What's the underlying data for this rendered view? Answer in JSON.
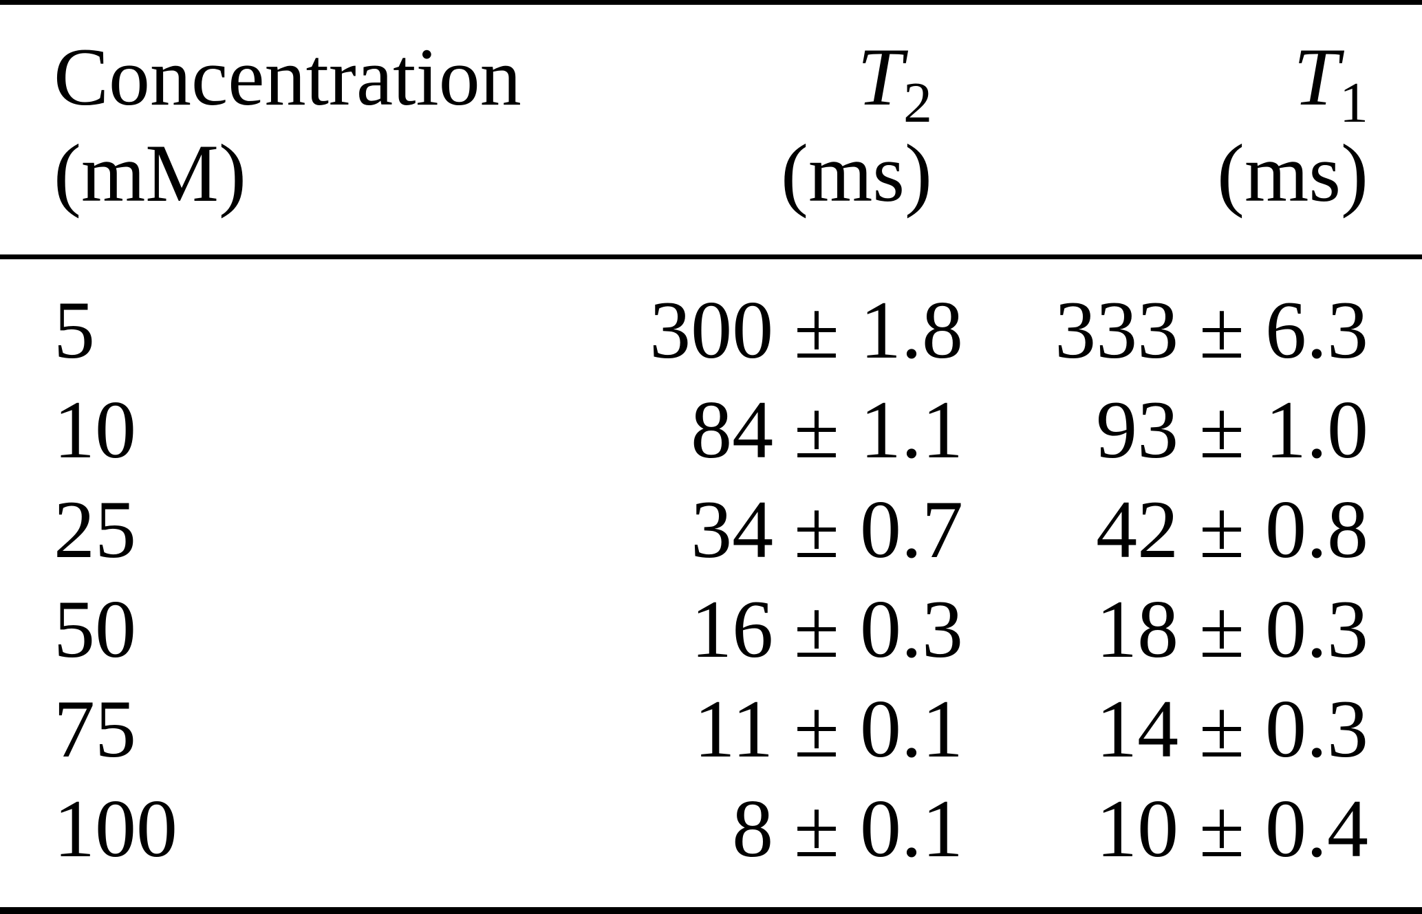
{
  "colors": {
    "text": "#000000",
    "background": "#ffffff",
    "rule": "#000000"
  },
  "table": {
    "header": {
      "concentration": {
        "line1": "Concentration",
        "line2": "(mM)"
      },
      "t2": {
        "symbol": "T",
        "subscript": "2",
        "unit": "(ms)"
      },
      "t1": {
        "symbol": "T",
        "subscript": "1",
        "unit": "(ms)"
      }
    },
    "rows": [
      {
        "concentration": "5",
        "t2": "300 ± 1.8",
        "t1": "333 ± 6.3"
      },
      {
        "concentration": "10",
        "t2": "84 ± 1.1",
        "t1": "93 ± 1.0"
      },
      {
        "concentration": "25",
        "t2": "34 ± 0.7",
        "t1": "42 ± 0.8"
      },
      {
        "concentration": "50",
        "t2": "16 ± 0.3",
        "t1": "18 ± 0.3"
      },
      {
        "concentration": "75",
        "t2": "11 ± 0.1",
        "t1": "14 ± 0.3"
      },
      {
        "concentration": "100",
        "t2": "8 ± 0.1",
        "t1": "10 ± 0.4"
      }
    ]
  },
  "chart_data": {
    "type": "table",
    "columns": [
      "Concentration (mM)",
      "T2 (ms)",
      "T1 (ms)"
    ],
    "concentration_mM": [
      5,
      10,
      25,
      50,
      75,
      100
    ],
    "T2_ms": {
      "values": [
        300,
        84,
        34,
        16,
        11,
        8
      ],
      "errors": [
        1.8,
        1.1,
        0.7,
        0.3,
        0.1,
        0.1
      ]
    },
    "T1_ms": {
      "values": [
        333,
        93,
        42,
        18,
        14,
        10
      ],
      "errors": [
        6.3,
        1.0,
        0.8,
        0.3,
        0.3,
        0.4
      ]
    }
  }
}
